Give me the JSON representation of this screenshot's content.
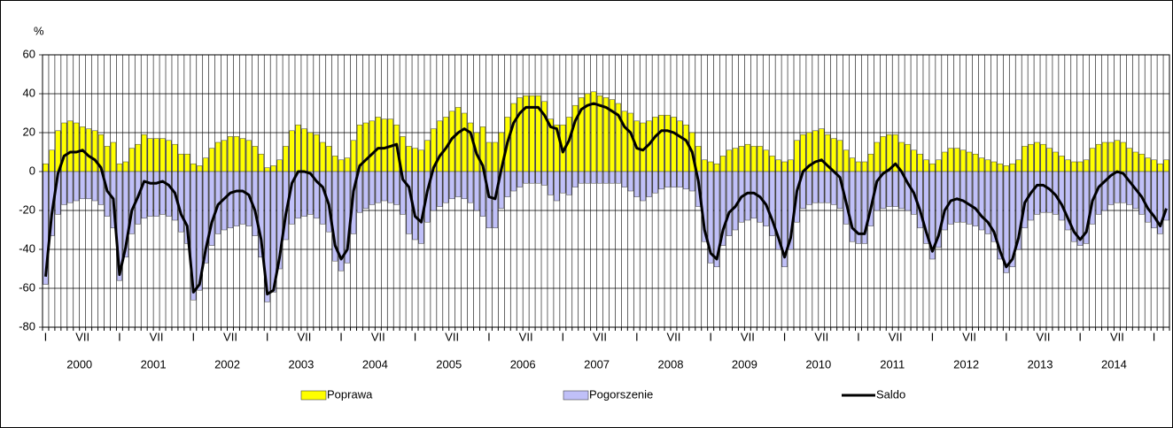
{
  "chart_data": {
    "type": "bar",
    "y_label": "%",
    "categories": [
      "I",
      null,
      null,
      null,
      null,
      null,
      "VII",
      null,
      null,
      null,
      null,
      null,
      "I",
      null,
      null,
      null,
      null,
      null,
      "VII",
      null,
      null,
      null,
      null,
      null,
      "I",
      null,
      null,
      null,
      null,
      null,
      "VII",
      null,
      null,
      null,
      null,
      null,
      "I",
      null,
      null,
      null,
      null,
      null,
      "VII",
      null,
      null,
      null,
      null,
      null,
      "I",
      null,
      null,
      null,
      null,
      null,
      "VII",
      null,
      null,
      null,
      null,
      null,
      "I",
      null,
      null,
      null,
      null,
      null,
      "VII",
      null,
      null,
      null,
      null,
      null,
      "I",
      null,
      null,
      null,
      null,
      null,
      "VII",
      null,
      null,
      null,
      null,
      null,
      "I",
      null,
      null,
      null,
      null,
      null,
      "VII",
      null,
      null,
      null,
      null,
      null,
      "I",
      null,
      null,
      null,
      null,
      null,
      "VII",
      null,
      null,
      null,
      null,
      null,
      "I",
      null,
      null,
      null,
      null,
      null,
      "VII",
      null,
      null,
      null,
      null,
      null,
      "I",
      null,
      null,
      null,
      null,
      null,
      "VII",
      null,
      null,
      null,
      null,
      null,
      "I",
      null,
      null,
      null,
      null,
      null,
      "VII",
      null,
      null,
      null,
      null,
      null,
      "I",
      null,
      null,
      null,
      null,
      null,
      "VII",
      null,
      null,
      null,
      null,
      null,
      "I",
      null,
      null,
      null,
      null,
      null,
      "VII",
      null,
      null,
      null,
      null,
      null,
      "I",
      null,
      null,
      null,
      null,
      null,
      "VII",
      null,
      null,
      null,
      null,
      null,
      "I",
      null,
      null
    ],
    "year_labels": [
      "2000",
      "2001",
      "2002",
      "2003",
      "2004",
      "2005",
      "2006",
      "2007",
      "2008",
      "2009",
      "2010",
      "2011",
      "2012",
      "2013",
      "2014"
    ],
    "ylim": [
      -80,
      60
    ],
    "yticks": [
      -80,
      -60,
      -40,
      -20,
      0,
      20,
      40,
      60
    ],
    "grid": true,
    "legend": "bottom",
    "series": [
      {
        "name": "Poprawa",
        "type": "bar",
        "color": "#ffff00",
        "values": [
          4,
          11,
          21,
          25,
          26,
          25,
          23,
          22,
          21,
          19,
          13,
          15,
          4,
          5,
          12,
          14,
          19,
          17,
          17,
          17,
          16,
          14,
          9,
          9,
          4,
          3,
          7,
          12,
          15,
          16,
          18,
          18,
          17,
          16,
          13,
          9,
          2,
          3,
          6,
          13,
          21,
          24,
          22,
          20,
          19,
          15,
          13,
          8,
          6,
          7,
          16,
          24,
          25,
          26,
          28,
          27,
          27,
          24,
          18,
          13,
          12,
          11,
          16,
          22,
          26,
          28,
          31,
          33,
          30,
          25,
          20,
          23,
          15,
          15,
          20,
          28,
          35,
          38,
          39,
          39,
          39,
          36,
          27,
          24,
          24,
          28,
          34,
          38,
          40,
          41,
          39,
          38,
          37,
          35,
          31,
          30,
          26,
          25,
          26,
          28,
          29,
          29,
          28,
          26,
          24,
          20,
          13,
          6,
          5,
          4,
          8,
          11,
          12,
          13,
          14,
          13,
          13,
          11,
          8,
          6,
          5,
          6,
          16,
          19,
          20,
          21,
          22,
          19,
          17,
          16,
          11,
          7,
          5,
          5,
          9,
          15,
          18,
          19,
          19,
          15,
          14,
          11,
          9,
          6,
          4,
          6,
          10,
          12,
          12,
          11,
          10,
          9,
          7,
          6,
          5,
          4,
          3,
          4,
          6,
          13,
          14,
          15,
          14,
          12,
          10,
          8,
          6,
          5,
          5,
          6,
          12,
          14,
          15,
          15,
          16,
          15,
          12,
          10,
          9,
          7,
          6,
          4,
          6
        ]
      },
      {
        "name": "Pogorszenie",
        "type": "bar",
        "color": "#c0c0f8",
        "values": [
          -58,
          -33,
          -22,
          -17,
          -16,
          -15,
          -14,
          -14,
          -15,
          -17,
          -23,
          -29,
          -56,
          -44,
          -32,
          -27,
          -24,
          -23,
          -23,
          -22,
          -23,
          -25,
          -31,
          -37,
          -66,
          -61,
          -47,
          -38,
          -32,
          -30,
          -29,
          -28,
          -27,
          -28,
          -33,
          -44,
          -67,
          -62,
          -50,
          -35,
          -27,
          -24,
          -23,
          -22,
          -24,
          -27,
          -31,
          -46,
          -51,
          -47,
          -32,
          -21,
          -19,
          -17,
          -16,
          -15,
          -16,
          -17,
          -22,
          -32,
          -35,
          -37,
          -26,
          -20,
          -18,
          -16,
          -14,
          -13,
          -14,
          -16,
          -20,
          -23,
          -29,
          -29,
          -19,
          -13,
          -10,
          -8,
          -6,
          -6,
          -6,
          -7,
          -12,
          -15,
          -11,
          -12,
          -8,
          -6,
          -6,
          -6,
          -6,
          -6,
          -6,
          -6,
          -8,
          -10,
          -13,
          -15,
          -13,
          -11,
          -9,
          -8,
          -8,
          -8,
          -9,
          -10,
          -18,
          -36,
          -47,
          -49,
          -38,
          -33,
          -30,
          -26,
          -25,
          -24,
          -26,
          -28,
          -33,
          -40,
          -49,
          -40,
          -26,
          -19,
          -17,
          -16,
          -16,
          -16,
          -17,
          -19,
          -27,
          -36,
          -37,
          -37,
          -28,
          -20,
          -19,
          -18,
          -18,
          -19,
          -20,
          -22,
          -29,
          -37,
          -45,
          -39,
          -30,
          -27,
          -26,
          -26,
          -27,
          -28,
          -30,
          -32,
          -36,
          -45,
          -52,
          -49,
          -40,
          -29,
          -25,
          -22,
          -21,
          -21,
          -22,
          -25,
          -30,
          -36,
          -38,
          -37,
          -27,
          -22,
          -20,
          -17,
          -16,
          -16,
          -17,
          -19,
          -22,
          -26,
          -29,
          -32,
          -25
        ]
      },
      {
        "name": "Saldo",
        "type": "line",
        "color": "#000000",
        "values": [
          -54,
          -22,
          -1,
          8,
          10,
          10,
          11,
          8,
          6,
          2,
          -10,
          -14,
          -53,
          -39,
          -20,
          -13,
          -5,
          -6,
          -6,
          -5,
          -7,
          -11,
          -22,
          -28,
          -62,
          -58,
          -40,
          -26,
          -17,
          -14,
          -11,
          -10,
          -10,
          -12,
          -20,
          -35,
          -63,
          -61,
          -44,
          -22,
          -6,
          0,
          0,
          -1,
          -5,
          -8,
          -17,
          -38,
          -45,
          -40,
          -10,
          3,
          6,
          9,
          12,
          12,
          13,
          14,
          -4,
          -8,
          -23,
          -26,
          -10,
          2,
          8,
          12,
          17,
          20,
          22,
          20,
          9,
          3,
          -13,
          -14,
          1,
          15,
          25,
          30,
          33,
          33,
          33,
          29,
          23,
          22,
          10,
          16,
          26,
          32,
          34,
          35,
          34,
          33,
          31,
          29,
          23,
          20,
          12,
          11,
          14,
          18,
          21,
          21,
          20,
          18,
          16,
          10,
          -5,
          -30,
          -42,
          -45,
          -30,
          -21,
          -18,
          -13,
          -11,
          -11,
          -13,
          -17,
          -25,
          -34,
          -44,
          -34,
          -10,
          0,
          3,
          5,
          6,
          3,
          0,
          -3,
          -16,
          -29,
          -32,
          -32,
          -19,
          -5,
          -1,
          1,
          4,
          0,
          -6,
          -11,
          -20,
          -31,
          -41,
          -33,
          -20,
          -15,
          -14,
          -15,
          -17,
          -19,
          -23,
          -26,
          -31,
          -41,
          -49,
          -45,
          -34,
          -16,
          -11,
          -7,
          -7,
          -9,
          -12,
          -17,
          -24,
          -31,
          -35,
          -31,
          -15,
          -8,
          -5,
          -2,
          0,
          -1,
          -5,
          -9,
          -13,
          -19,
          -23,
          -28,
          -19
        ]
      }
    ]
  }
}
